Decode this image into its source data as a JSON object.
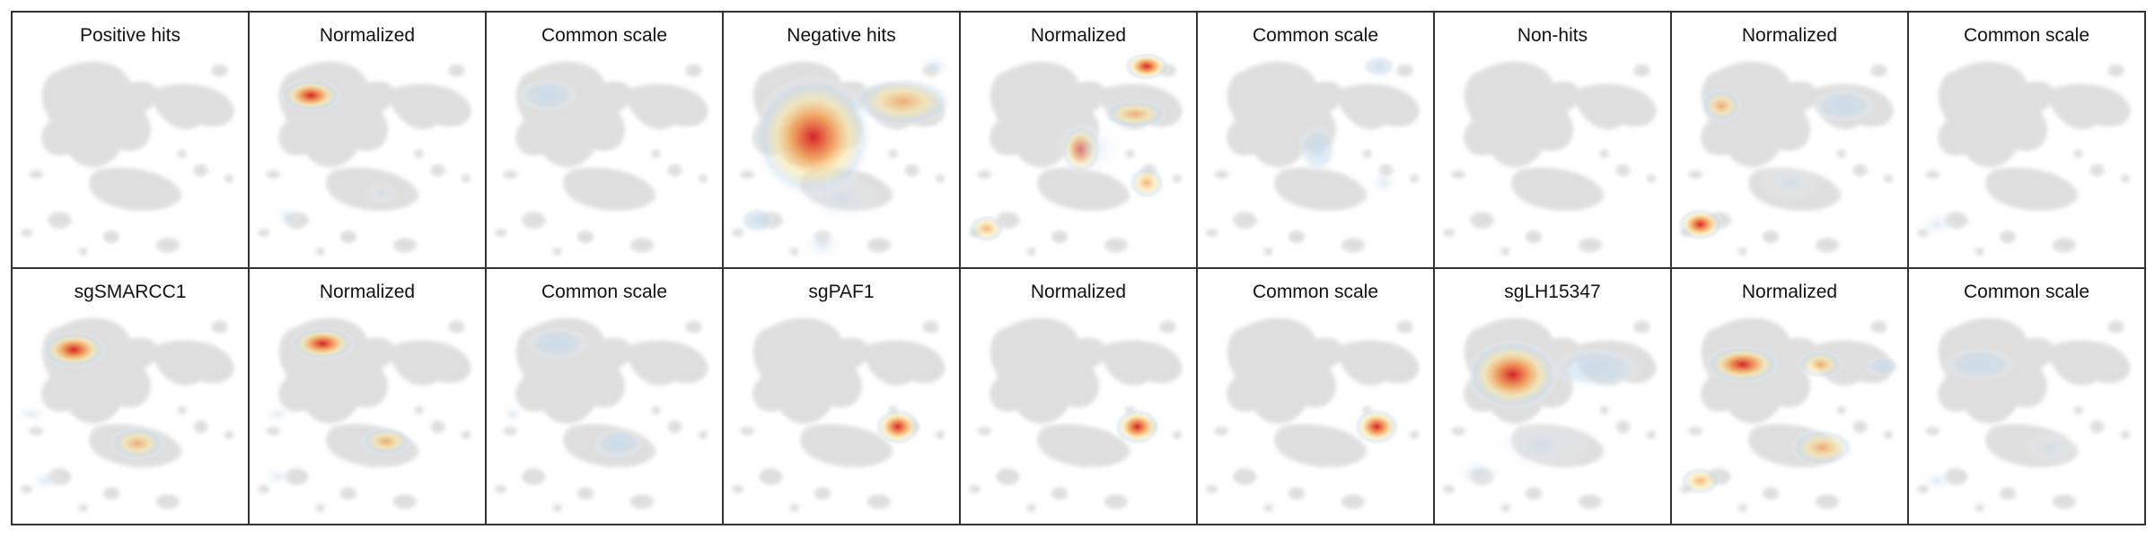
{
  "chart_data": {
    "type": "heatmap",
    "description_grid": "2 rows x 9 panels; density overlays on a grey embedding map",
    "rows": [
      {
        "panels": [
          {
            "title": "Positive hits",
            "blobs": []
          },
          {
            "title": "Normalized",
            "blobs": [
              {
                "x": 0.26,
                "y": 0.2,
                "rx": 0.13,
                "ry": 0.08,
                "level": 1.0
              },
              {
                "x": 0.16,
                "y": 0.78,
                "rx": 0.06,
                "ry": 0.06,
                "level": 0.2
              },
              {
                "x": 0.56,
                "y": 0.67,
                "rx": 0.08,
                "ry": 0.06,
                "level": 0.15
              }
            ]
          },
          {
            "title": "Common scale",
            "blobs": [
              {
                "x": 0.26,
                "y": 0.2,
                "rx": 0.13,
                "ry": 0.08,
                "level": 0.3
              }
            ]
          },
          {
            "title": "Negative hits",
            "blobs": [
              {
                "x": 0.38,
                "y": 0.4,
                "rx": 0.26,
                "ry": 0.3,
                "level": 1.0
              },
              {
                "x": 0.76,
                "y": 0.23,
                "rx": 0.22,
                "ry": 0.12,
                "level": 0.45
              },
              {
                "x": 0.9,
                "y": 0.06,
                "rx": 0.08,
                "ry": 0.07,
                "level": 0.15
              },
              {
                "x": 0.14,
                "y": 0.8,
                "rx": 0.08,
                "ry": 0.07,
                "level": 0.3
              },
              {
                "x": 0.5,
                "y": 0.7,
                "rx": 0.18,
                "ry": 0.12,
                "level": 0.15
              },
              {
                "x": 0.42,
                "y": 0.92,
                "rx": 0.1,
                "ry": 0.08,
                "level": 0.1
              }
            ]
          },
          {
            "title": "Normalized",
            "blobs": [
              {
                "x": 0.79,
                "y": 0.06,
                "rx": 0.1,
                "ry": 0.07,
                "level": 1.0
              },
              {
                "x": 0.51,
                "y": 0.46,
                "rx": 0.09,
                "ry": 0.12,
                "level": 0.9
              },
              {
                "x": 0.79,
                "y": 0.62,
                "rx": 0.08,
                "ry": 0.08,
                "level": 0.8
              },
              {
                "x": 0.74,
                "y": 0.29,
                "rx": 0.14,
                "ry": 0.07,
                "level": 0.5
              },
              {
                "x": 0.11,
                "y": 0.84,
                "rx": 0.08,
                "ry": 0.07,
                "level": 0.55
              },
              {
                "x": 0.55,
                "y": 0.46,
                "rx": 0.16,
                "ry": 0.14,
                "level": 0.2
              }
            ]
          },
          {
            "title": "Common scale",
            "blobs": [
              {
                "x": 0.77,
                "y": 0.06,
                "rx": 0.08,
                "ry": 0.06,
                "level": 0.35
              },
              {
                "x": 0.51,
                "y": 0.46,
                "rx": 0.09,
                "ry": 0.12,
                "level": 0.25
              },
              {
                "x": 0.79,
                "y": 0.62,
                "rx": 0.07,
                "ry": 0.07,
                "level": 0.2
              }
            ]
          },
          {
            "title": "Non-hits",
            "blobs": []
          },
          {
            "title": "Normalized",
            "blobs": [
              {
                "x": 0.21,
                "y": 0.25,
                "rx": 0.09,
                "ry": 0.08,
                "level": 0.45
              },
              {
                "x": 0.73,
                "y": 0.25,
                "rx": 0.14,
                "ry": 0.08,
                "level": 0.4
              },
              {
                "x": 0.12,
                "y": 0.82,
                "rx": 0.1,
                "ry": 0.08,
                "level": 1.0
              },
              {
                "x": 0.5,
                "y": 0.62,
                "rx": 0.14,
                "ry": 0.1,
                "level": 0.15
              }
            ]
          },
          {
            "title": "Common scale",
            "blobs": [
              {
                "x": 0.12,
                "y": 0.82,
                "rx": 0.09,
                "ry": 0.07,
                "level": 0.15
              }
            ]
          }
        ]
      },
      {
        "panels": [
          {
            "title": "sgSMARCC1",
            "blobs": [
              {
                "x": 0.26,
                "y": 0.19,
                "rx": 0.14,
                "ry": 0.09,
                "level": 1.0
              },
              {
                "x": 0.53,
                "y": 0.64,
                "rx": 0.12,
                "ry": 0.08,
                "level": 0.55
              },
              {
                "x": 0.08,
                "y": 0.5,
                "rx": 0.08,
                "ry": 0.05,
                "level": 0.15
              },
              {
                "x": 0.14,
                "y": 0.82,
                "rx": 0.08,
                "ry": 0.06,
                "level": 0.2
              }
            ]
          },
          {
            "title": "Normalized",
            "blobs": [
              {
                "x": 0.31,
                "y": 0.16,
                "rx": 0.14,
                "ry": 0.08,
                "level": 1.0
              },
              {
                "x": 0.58,
                "y": 0.63,
                "rx": 0.11,
                "ry": 0.07,
                "level": 0.6
              },
              {
                "x": 0.12,
                "y": 0.5,
                "rx": 0.07,
                "ry": 0.05,
                "level": 0.2
              },
              {
                "x": 0.12,
                "y": 0.8,
                "rx": 0.07,
                "ry": 0.06,
                "level": 0.2
              }
            ]
          },
          {
            "title": "Common scale",
            "blobs": [
              {
                "x": 0.3,
                "y": 0.16,
                "rx": 0.14,
                "ry": 0.08,
                "level": 0.3
              },
              {
                "x": 0.56,
                "y": 0.64,
                "rx": 0.11,
                "ry": 0.07,
                "level": 0.3
              },
              {
                "x": 0.11,
                "y": 0.5,
                "rx": 0.06,
                "ry": 0.05,
                "level": 0.12
              }
            ]
          },
          {
            "title": "sgPAF1",
            "blobs": [
              {
                "x": 0.74,
                "y": 0.56,
                "rx": 0.1,
                "ry": 0.09,
                "level": 1.0
              }
            ]
          },
          {
            "title": "Normalized",
            "blobs": [
              {
                "x": 0.75,
                "y": 0.56,
                "rx": 0.1,
                "ry": 0.09,
                "level": 1.0
              }
            ]
          },
          {
            "title": "Common scale",
            "blobs": [
              {
                "x": 0.76,
                "y": 0.56,
                "rx": 0.1,
                "ry": 0.09,
                "level": 1.0
              }
            ]
          },
          {
            "title": "sgLH15347",
            "blobs": [
              {
                "x": 0.33,
                "y": 0.31,
                "rx": 0.2,
                "ry": 0.17,
                "level": 1.0
              },
              {
                "x": 0.68,
                "y": 0.28,
                "rx": 0.2,
                "ry": 0.1,
                "level": 0.4
              },
              {
                "x": 0.45,
                "y": 0.65,
                "rx": 0.22,
                "ry": 0.14,
                "level": 0.15
              },
              {
                "x": 0.18,
                "y": 0.78,
                "rx": 0.12,
                "ry": 0.08,
                "level": 0.15
              }
            ]
          },
          {
            "title": "Normalized",
            "blobs": [
              {
                "x": 0.3,
                "y": 0.26,
                "rx": 0.16,
                "ry": 0.09,
                "level": 1.0
              },
              {
                "x": 0.63,
                "y": 0.26,
                "rx": 0.1,
                "ry": 0.07,
                "level": 0.5
              },
              {
                "x": 0.9,
                "y": 0.27,
                "rx": 0.08,
                "ry": 0.05,
                "level": 0.3
              },
              {
                "x": 0.12,
                "y": 0.82,
                "rx": 0.09,
                "ry": 0.07,
                "level": 0.8
              },
              {
                "x": 0.64,
                "y": 0.66,
                "rx": 0.14,
                "ry": 0.09,
                "level": 0.45
              }
            ]
          },
          {
            "title": "Common scale",
            "blobs": [
              {
                "x": 0.3,
                "y": 0.26,
                "rx": 0.16,
                "ry": 0.08,
                "level": 0.25
              },
              {
                "x": 0.12,
                "y": 0.82,
                "rx": 0.08,
                "ry": 0.06,
                "level": 0.2
              },
              {
                "x": 0.6,
                "y": 0.66,
                "rx": 0.12,
                "ry": 0.08,
                "level": 0.15
              }
            ]
          }
        ]
      }
    ],
    "colormap": [
      "#ffffff",
      "#c9dced",
      "#fbe8a6",
      "#f39c50",
      "#d7191c"
    ],
    "background_map_color": "#d9d9d9",
    "grid": false
  }
}
